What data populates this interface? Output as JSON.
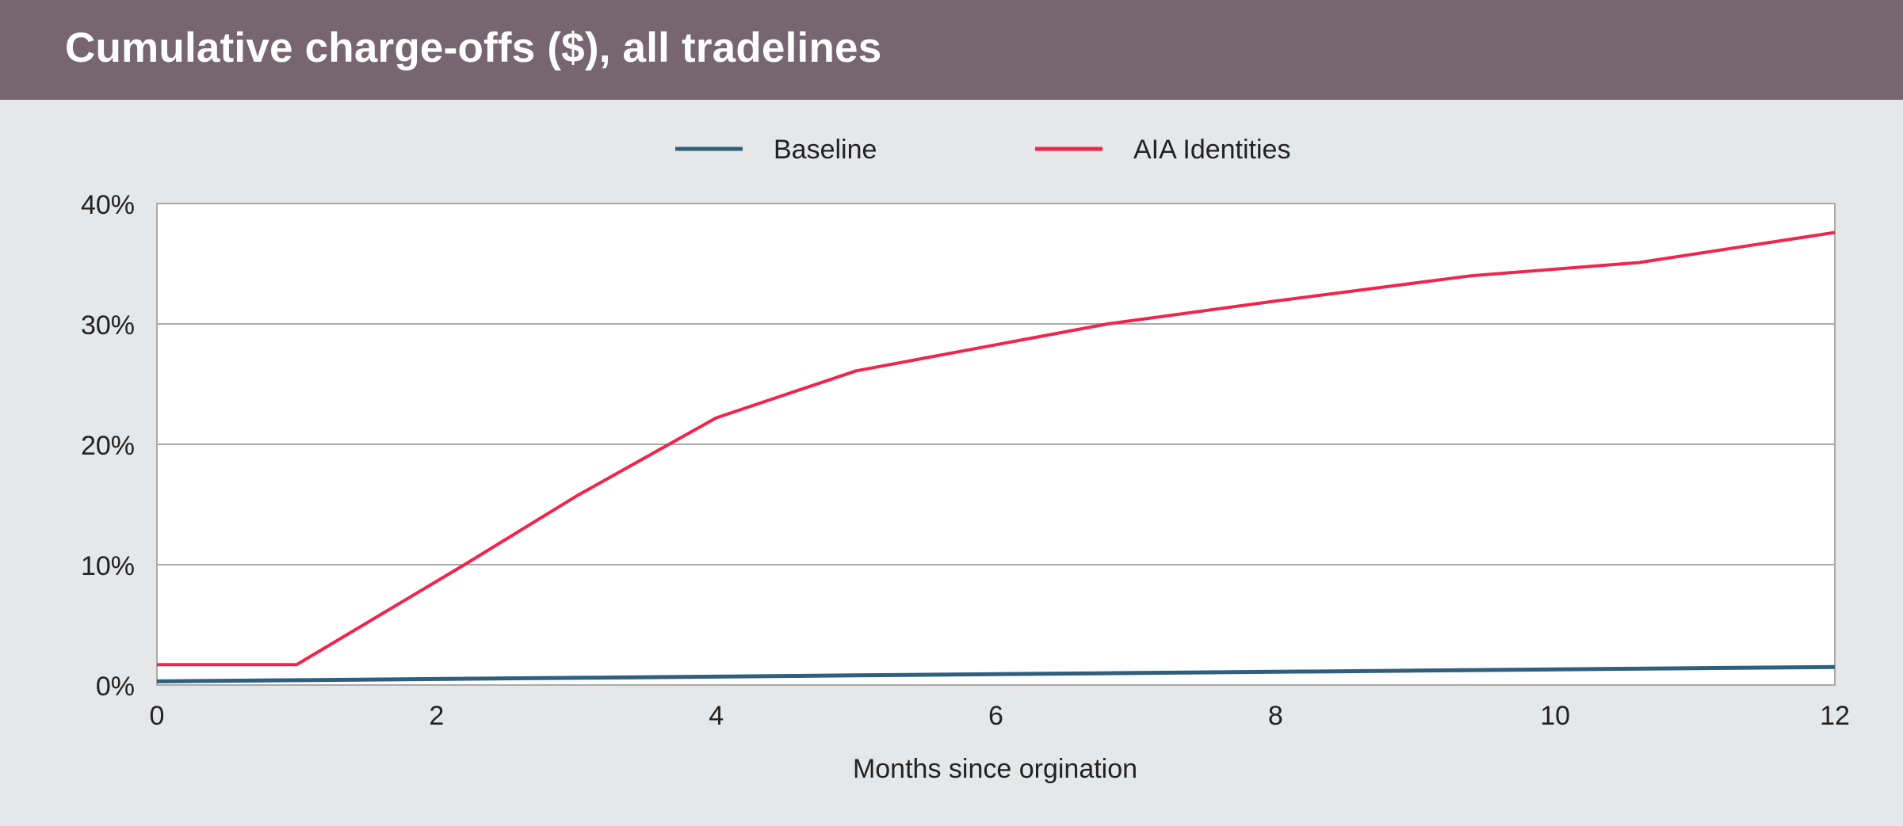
{
  "header": {
    "title": "Cumulative charge-offs ($), all tradelines",
    "background": "#776570"
  },
  "chart_data": {
    "type": "line",
    "title": "Cumulative charge-offs ($), all tradelines",
    "xlabel": "Months since orgination",
    "ylabel": "",
    "xlim": [
      0,
      12
    ],
    "ylim": [
      0,
      40
    ],
    "x_ticks": [
      0,
      2,
      4,
      6,
      8,
      10,
      12
    ],
    "y_ticks": [
      0,
      10,
      20,
      30,
      40
    ],
    "y_tick_labels": [
      "0%",
      "10%",
      "20%",
      "30%",
      "40%"
    ],
    "grid": "horizontal",
    "legend_position": "top-center",
    "series": [
      {
        "name": "Baseline",
        "color": "#2e5f7e",
        "x": [
          0,
          1,
          2,
          3,
          4,
          5,
          6,
          7,
          8,
          9,
          10,
          11,
          12
        ],
        "y": [
          0.3,
          0.4,
          0.5,
          0.6,
          0.7,
          0.8,
          0.9,
          1.0,
          1.1,
          1.2,
          1.3,
          1.4,
          1.5
        ]
      },
      {
        "name": "AIA Identities",
        "color": "#f0244c",
        "x": [
          0,
          1,
          2.2,
          3,
          4,
          5,
          6.8,
          8,
          9.4,
          10.6,
          12
        ],
        "y": [
          1.7,
          1.7,
          10.0,
          15.7,
          22.2,
          26.1,
          30.0,
          31.9,
          34.0,
          35.1,
          37.6
        ]
      }
    ]
  }
}
